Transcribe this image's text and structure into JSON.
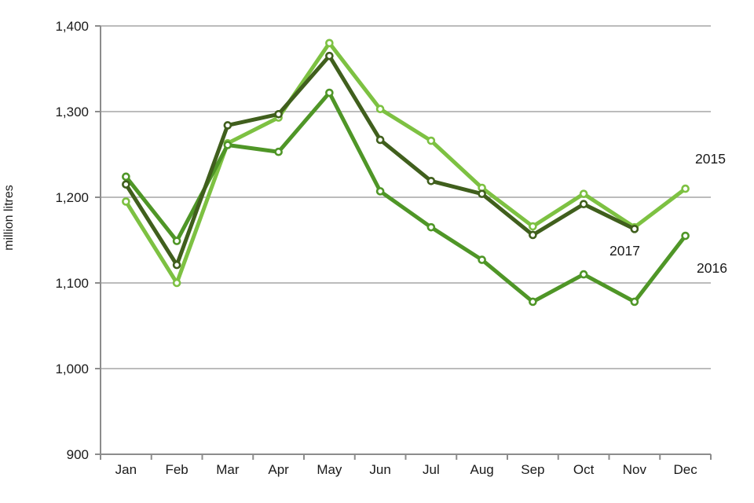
{
  "chart_data": {
    "type": "line",
    "title": "",
    "xlabel": "",
    "ylabel": "million litres",
    "categories": [
      "Jan",
      "Feb",
      "Mar",
      "Apr",
      "May",
      "Jun",
      "Jul",
      "Aug",
      "Sep",
      "Oct",
      "Nov",
      "Dec"
    ],
    "ylim": [
      900,
      1400
    ],
    "ytick_step": 100,
    "yticks": [
      900,
      1000,
      1100,
      1200,
      1300,
      1400
    ],
    "ytick_labels": [
      "900",
      "1,000",
      "1,100",
      "1,200",
      "1,300",
      "1,400"
    ],
    "grid": true,
    "legend_position": "end-of-line-annotations",
    "series": [
      {
        "name": "2015",
        "color": "#7DC142",
        "values": [
          1195,
          1100,
          1263,
          1293,
          1380,
          1303,
          1266,
          1211,
          1166,
          1204,
          1165,
          1210
        ]
      },
      {
        "name": "2016",
        "color": "#4F9627",
        "values": [
          1224,
          1149,
          1261,
          1253,
          1322,
          1207,
          1165,
          1127,
          1078,
          1110,
          1078,
          1155
        ]
      },
      {
        "name": "2017",
        "color": "#405F1D",
        "values": [
          1215,
          1121,
          1284,
          1297,
          1365,
          1267,
          1219,
          1204,
          1156,
          1192,
          1163,
          null
        ]
      }
    ],
    "annotations": [
      {
        "text": "2015",
        "x": 885,
        "y": 208
      },
      {
        "text": "2017",
        "x": 776,
        "y": 325
      },
      {
        "text": "2016",
        "x": 887,
        "y": 347
      }
    ]
  },
  "styles": {
    "background": "#ffffff",
    "grid_color": "#A6A6A6",
    "axis_color": "#8C8C8C",
    "text_color": "#1A1A1A",
    "marker_fill": "#FFFFFF"
  }
}
